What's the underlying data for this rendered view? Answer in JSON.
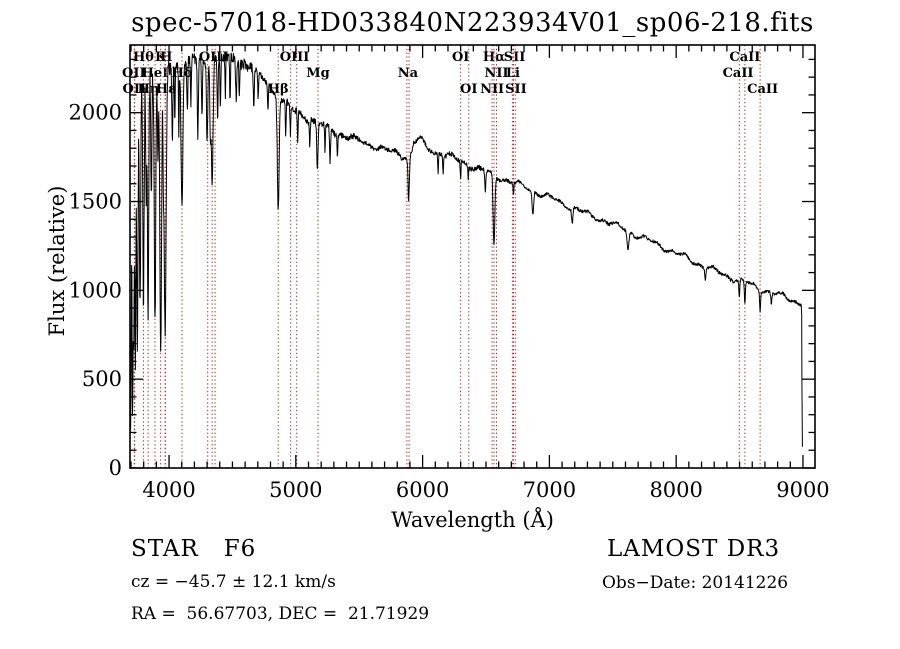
{
  "title": "spec-57018-HD033840N223934V01_sp06-218.fits",
  "colors": {
    "background": "#ffffff",
    "axis": "#000000",
    "spectrum": "#000000",
    "marker_line": "#aa3333",
    "text": "#000000"
  },
  "chart_data": {
    "type": "line",
    "title": "spec-57018-HD033840N223934V01_sp06-218.fits",
    "xlabel": "Wavelength (Å)",
    "ylabel": "Flux (relative)",
    "xlim": [
      3692,
      9095
    ],
    "ylim": [
      0,
      2381
    ],
    "x_ticks": [
      4000,
      5000,
      6000,
      7000,
      8000,
      9000
    ],
    "x_minor_step": 100,
    "y_ticks": [
      0,
      500,
      1000,
      1500,
      2000
    ],
    "y_minor_step": 100,
    "grid": false,
    "legend": "none",
    "series_name": "flux",
    "continuum": [
      [
        3692,
        2050
      ],
      [
        3720,
        2100
      ],
      [
        3760,
        2150
      ],
      [
        3800,
        2185
      ],
      [
        3850,
        2210
      ],
      [
        3900,
        2235
      ],
      [
        3950,
        2250
      ],
      [
        4000,
        2262
      ],
      [
        4100,
        2280
      ],
      [
        4200,
        2292
      ],
      [
        4300,
        2300
      ],
      [
        4450,
        2308
      ],
      [
        4550,
        2295
      ],
      [
        4650,
        2255
      ],
      [
        4750,
        2185
      ],
      [
        4850,
        2100
      ],
      [
        4950,
        2030
      ],
      [
        5050,
        1985
      ],
      [
        5150,
        1950
      ],
      [
        5250,
        1915
      ],
      [
        5350,
        1882
      ],
      [
        5450,
        1855
      ],
      [
        5550,
        1828
      ],
      [
        5650,
        1805
      ],
      [
        5750,
        1782
      ],
      [
        5850,
        1758
      ],
      [
        5900,
        1745
      ],
      [
        5930,
        1830
      ],
      [
        5980,
        1858
      ],
      [
        6030,
        1805
      ],
      [
        6090,
        1780
      ],
      [
        6150,
        1772
      ],
      [
        6250,
        1742
      ],
      [
        6350,
        1710
      ],
      [
        6450,
        1682
      ],
      [
        6563,
        1650
      ],
      [
        6650,
        1625
      ],
      [
        6750,
        1598
      ],
      [
        6870,
        1562
      ],
      [
        7000,
        1522
      ],
      [
        7150,
        1475
      ],
      [
        7300,
        1430
      ],
      [
        7450,
        1388
      ],
      [
        7600,
        1342
      ],
      [
        7750,
        1292
      ],
      [
        7900,
        1242
      ],
      [
        8050,
        1192
      ],
      [
        8200,
        1142
      ],
      [
        8350,
        1096
      ],
      [
        8500,
        1056
      ],
      [
        8650,
        1014
      ],
      [
        8800,
        975
      ],
      [
        8900,
        950
      ],
      [
        8988,
        928
      ]
    ],
    "absorption_lines": [
      [
        3697,
        1850,
        5
      ],
      [
        3712,
        1700,
        4
      ],
      [
        3722,
        1300,
        4
      ],
      [
        3734,
        1600,
        4
      ],
      [
        3750,
        1500,
        5
      ],
      [
        3771,
        1250,
        5
      ],
      [
        3798,
        1300,
        5
      ],
      [
        3820,
        700,
        4
      ],
      [
        3835,
        1350,
        5
      ],
      [
        3860,
        650,
        4
      ],
      [
        3889,
        1400,
        6
      ],
      [
        3912,
        500,
        4
      ],
      [
        3934,
        1600,
        7
      ],
      [
        3955,
        400,
        3
      ],
      [
        3969,
        1500,
        8
      ],
      [
        4026,
        400,
        4
      ],
      [
        4045,
        330,
        3
      ],
      [
        4077,
        380,
        3
      ],
      [
        4102,
        820,
        7
      ],
      [
        4144,
        300,
        4
      ],
      [
        4172,
        260,
        3
      ],
      [
        4227,
        420,
        4
      ],
      [
        4260,
        290,
        4
      ],
      [
        4300,
        470,
        5
      ],
      [
        4325,
        350,
        4
      ],
      [
        4340,
        720,
        7
      ],
      [
        4383,
        360,
        4
      ],
      [
        4405,
        280,
        3
      ],
      [
        4444,
        220,
        3
      ],
      [
        4481,
        260,
        3
      ],
      [
        4530,
        210,
        4
      ],
      [
        4554,
        180,
        3
      ],
      [
        4668,
        220,
        4
      ],
      [
        4703,
        160,
        3
      ],
      [
        4780,
        150,
        3
      ],
      [
        4861,
        620,
        7
      ],
      [
        4920,
        210,
        3
      ],
      [
        4957,
        160,
        3
      ],
      [
        5015,
        170,
        3
      ],
      [
        5110,
        140,
        3
      ],
      [
        5170,
        260,
        5
      ],
      [
        5230,
        150,
        3
      ],
      [
        5270,
        190,
        4
      ],
      [
        5328,
        140,
        3
      ],
      [
        5890,
        240,
        5
      ],
      [
        6122,
        110,
        3
      ],
      [
        6162,
        90,
        3
      ],
      [
        6300,
        100,
        3
      ],
      [
        6360,
        70,
        3
      ],
      [
        6495,
        110,
        4
      ],
      [
        6563,
        400,
        7
      ],
      [
        6717,
        70,
        3
      ],
      [
        6870,
        130,
        6
      ],
      [
        7180,
        80,
        5
      ],
      [
        7620,
        110,
        7
      ],
      [
        8230,
        60,
        4
      ],
      [
        8498,
        100,
        4
      ],
      [
        8542,
        130,
        4
      ],
      [
        8662,
        110,
        4
      ],
      [
        8750,
        60,
        4
      ]
    ],
    "noise_profile": [
      [
        3692,
        70
      ],
      [
        3900,
        38
      ],
      [
        4200,
        28
      ],
      [
        4700,
        18
      ],
      [
        5500,
        13
      ],
      [
        6500,
        10
      ],
      [
        7500,
        9
      ]
    ],
    "wiggle": [
      [
        12,
        41
      ],
      [
        8,
        17.3
      ]
    ],
    "end_drop": [
      [
        8990,
        860
      ],
      [
        8992,
        500
      ],
      [
        8996,
        120
      ]
    ],
    "sample_step": 2.5,
    "seed": 7
  },
  "spectral_markers": [
    {
      "label": "Hθ",
      "row": 1,
      "at": 3798,
      "marks": [
        3798
      ]
    },
    {
      "label": "K",
      "row": 1,
      "at": 3934,
      "marks": [
        3934
      ]
    },
    {
      "label": "H",
      "row": 1,
      "at": 3978,
      "marks": [
        3969
      ]
    },
    {
      "label": "OIII",
      "row": 1,
      "at": 4352,
      "marks": [
        4305,
        4340,
        4363
      ]
    },
    {
      "label": "OIII",
      "row": 1,
      "at": 4990,
      "marks": [
        4959,
        5007
      ]
    },
    {
      "label": "OI",
      "row": 1,
      "at": 6300,
      "marks": [
        6300
      ]
    },
    {
      "label": "Hα",
      "row": 1,
      "at": 6563,
      "marks": [
        6563
      ]
    },
    {
      "label": "SII",
      "row": 1,
      "at": 6725,
      "marks": [
        6717
      ]
    },
    {
      "label": "CaII",
      "row": 1,
      "at": 8542,
      "marks": [
        8542
      ]
    },
    {
      "label": "OII",
      "row": 2,
      "at": 3722,
      "marks": [
        3726
      ]
    },
    {
      "label": "HeI",
      "row": 2,
      "at": 3889,
      "marks": [
        3889
      ]
    },
    {
      "label": "Hδ",
      "row": 2,
      "at": 4102,
      "marks": [
        4102
      ]
    },
    {
      "label": "Mg",
      "row": 2,
      "at": 5175,
      "marks": [
        5175
      ]
    },
    {
      "label": "Na",
      "row": 2,
      "at": 5884,
      "marks": [
        5876,
        5893
      ]
    },
    {
      "label": "NII",
      "row": 2,
      "at": 6583,
      "marks": [
        6583
      ]
    },
    {
      "label": "Li",
      "row": 2,
      "at": 6712,
      "marks": [
        6708
      ]
    },
    {
      "label": "CaII",
      "row": 2,
      "at": 8488,
      "marks": [
        8498
      ]
    },
    {
      "label": "OII",
      "row": 3,
      "at": 3726,
      "marks": [
        3729
      ]
    },
    {
      "label": "Hη",
      "row": 3,
      "at": 3838,
      "marks": [
        3835
      ]
    },
    {
      "label": "Hε",
      "row": 3,
      "at": 3975,
      "marks": [
        3971
      ]
    },
    {
      "label": "Hβ",
      "row": 3,
      "at": 4861,
      "marks": [
        4861
      ]
    },
    {
      "label": "OI",
      "row": 3,
      "at": 6364,
      "marks": [
        6364
      ]
    },
    {
      "label": "NII",
      "row": 3,
      "at": 6548,
      "marks": [
        6548
      ]
    },
    {
      "label": "SII",
      "row": 3,
      "at": 6736,
      "marks": [
        6731
      ]
    },
    {
      "label": "CaII",
      "row": 3,
      "at": 8682,
      "marks": [
        8662
      ]
    }
  ],
  "footer": {
    "class_label": "STAR   F6",
    "survey": "LAMOST DR3",
    "cz": "cz = −45.7 ± 12.1 km/s",
    "obs_date": "Obs−Date: 20141226",
    "ra_dec": "RA =  56.67703, DEC =  21.71929"
  }
}
